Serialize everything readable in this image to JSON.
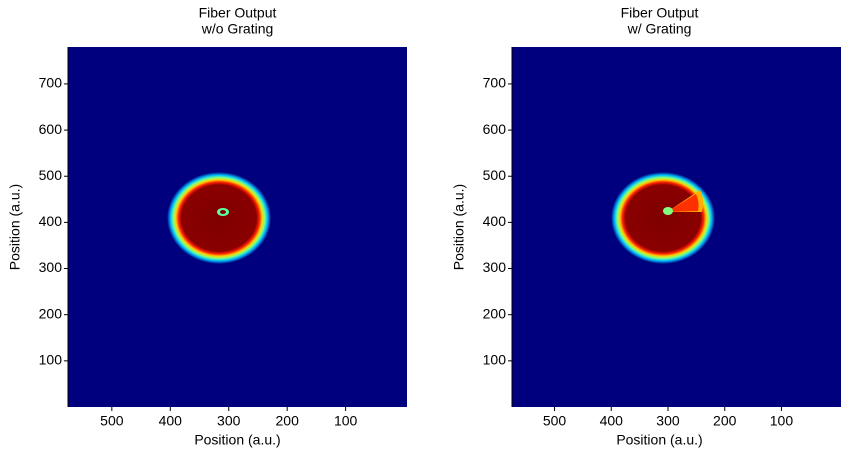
{
  "chart_data": [
    {
      "type": "heatmap",
      "title": "Fiber Output",
      "subtitle": "w/o Grating",
      "xlabel": "Position (a.u.)",
      "ylabel": "Position (a.u.)",
      "xlim": [
        575,
        -5
      ],
      "ylim": [
        0,
        780
      ],
      "xticks": [
        500,
        400,
        300,
        200,
        100
      ],
      "yticks": [
        100,
        200,
        300,
        400,
        500,
        600,
        700
      ]
    },
    {
      "type": "heatmap",
      "title": "Fiber Output",
      "subtitle": "w/ Grating",
      "xlabel": "Position (a.u.)",
      "ylabel": "Position (a.u.)",
      "xlim": [
        575,
        -5
      ],
      "ylim": [
        0,
        780
      ],
      "xticks": [
        500,
        400,
        300,
        200,
        100
      ],
      "yticks": [
        100,
        200,
        300,
        400,
        500,
        600,
        700
      ]
    }
  ]
}
